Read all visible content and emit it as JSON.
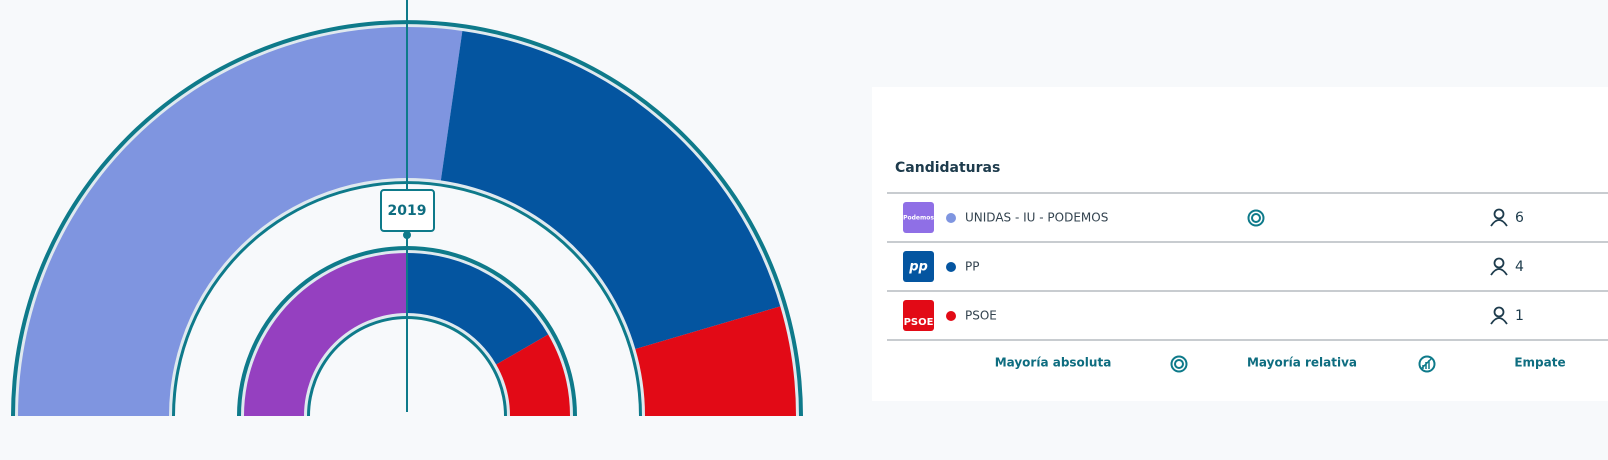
{
  "chart_data": {
    "type": "parliament",
    "categories": [
      "UNIDAS - IU - PODEMOS",
      "PP",
      "PSOE"
    ],
    "values": [
      6,
      4,
      1
    ],
    "colors": [
      "#7f95e0",
      "#0455a0",
      "#e20a16"
    ],
    "previous": {
      "label": "2019",
      "values": [
        3,
        2,
        1
      ],
      "colors": [
        "#9540c0",
        "#0455a0",
        "#e20a16"
      ]
    }
  },
  "panel": {
    "title": "Candidaturas",
    "logos": [
      "Podemos",
      "pp",
      "PSOE"
    ],
    "logo_colors": [
      "#8f6fe6",
      "#0455a0",
      "#e20a16"
    ],
    "footer": [
      "Mayoría absoluta",
      "Mayoría relativa",
      "Empate"
    ]
  }
}
